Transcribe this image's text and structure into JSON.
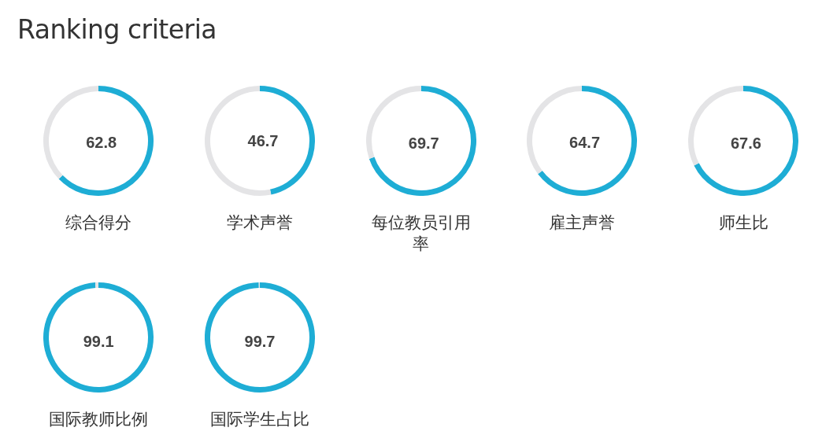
{
  "chart_data": [
    {
      "type": "other",
      "title": "Ranking criteria"
    },
    {
      "type": "donut",
      "title": "综合得分",
      "categories": [
        null,
        null
      ],
      "values": [
        62.8,
        37.2
      ],
      "colors": [
        "#1eadd5",
        "#e4e4e6"
      ],
      "value_labels": [
        "62.8",
        null
      ]
    },
    {
      "type": "donut",
      "title": "学术声誉",
      "categories": [
        null,
        null
      ],
      "values": [
        46.7,
        53.3
      ],
      "colors": [
        "#1eadd5",
        "#e4e4e6"
      ],
      "value_labels": [
        "46.7",
        null
      ]
    },
    {
      "type": "donut",
      "title": "每位教员引用率",
      "categories": [
        null,
        null
      ],
      "values": [
        69.7,
        30.3
      ],
      "colors": [
        "#1eadd5",
        "#e4e4e6"
      ],
      "value_labels": [
        "69.7",
        null
      ]
    },
    {
      "type": "donut",
      "title": "雇主声誉",
      "categories": [
        null,
        null
      ],
      "values": [
        64.7,
        35.3
      ],
      "colors": [
        "#1eadd5",
        "#e4e4e6"
      ],
      "value_labels": [
        "64.7",
        null
      ]
    },
    {
      "type": "donut",
      "title": "师生比",
      "categories": [
        null,
        null
      ],
      "values": [
        67.6,
        32.4
      ],
      "colors": [
        "#1eadd5",
        "#e4e4e6"
      ],
      "value_labels": [
        "67.6",
        null
      ]
    },
    {
      "type": "donut",
      "title": "国际教师比例",
      "categories": [
        null,
        null
      ],
      "values": [
        99.1,
        0.9
      ],
      "colors": [
        "#1eadd5",
        "#e4e4e6"
      ],
      "value_labels": [
        "99.1",
        null
      ]
    },
    {
      "type": "donut",
      "title": "国际学生占比",
      "categories": [
        null,
        null
      ],
      "values": [
        99.7,
        0.3
      ],
      "colors": [
        "#1eadd5",
        "#e4e4e6"
      ],
      "value_labels": [
        "99.7",
        null
      ]
    }
  ]
}
